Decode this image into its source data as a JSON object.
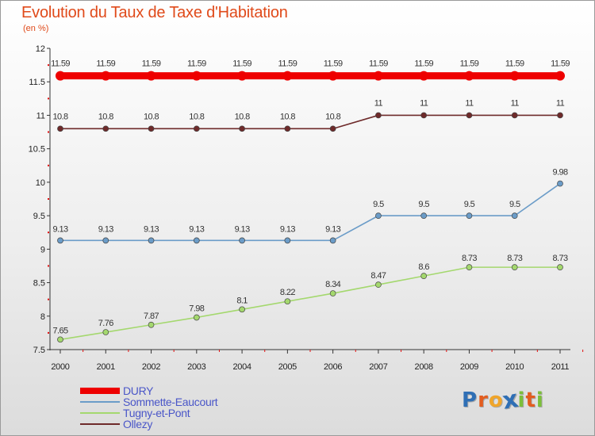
{
  "chart_data": {
    "type": "line",
    "title": "Evolution du Taux de Taxe d'Habitation",
    "subtitle": "(en %)",
    "x": [
      "2000",
      "2001",
      "2002",
      "2003",
      "2004",
      "2005",
      "2006",
      "2007",
      "2008",
      "2009",
      "2010",
      "2011"
    ],
    "ylim": [
      7.5,
      12
    ],
    "yticks": [
      "7.5",
      "8",
      "8.5",
      "9",
      "9.5",
      "10",
      "10.5",
      "11",
      "11.5",
      "12"
    ],
    "grid": false,
    "legend_position": "bottom-left",
    "series": [
      {
        "name": "DURY",
        "color": "#ee0000",
        "values": [
          11.59,
          11.59,
          11.59,
          11.59,
          11.59,
          11.59,
          11.59,
          11.59,
          11.59,
          11.59,
          11.59,
          11.59
        ],
        "labels": [
          "11.59",
          "11.59",
          "11.59",
          "11.59",
          "11.59",
          "11.59",
          "11.59",
          "11.59",
          "11.59",
          "11.59",
          "11.59",
          "11.59"
        ]
      },
      {
        "name": "Sommette-Eaucourt",
        "color": "#6b9cc8",
        "values": [
          9.13,
          9.13,
          9.13,
          9.13,
          9.13,
          9.13,
          9.13,
          9.5,
          9.5,
          9.5,
          9.5,
          9.98
        ],
        "labels": [
          "9.13",
          "9.13",
          "9.13",
          "9.13",
          "9.13",
          "9.13",
          "9.13",
          "9.5",
          "9.5",
          "9.5",
          "9.5",
          "9.98"
        ]
      },
      {
        "name": "Tugny-et-Pont",
        "color": "#a4d86e",
        "values": [
          7.65,
          7.76,
          7.87,
          7.98,
          8.1,
          8.22,
          8.34,
          8.47,
          8.6,
          8.73,
          8.73,
          8.73
        ],
        "labels": [
          "7.65",
          "7.76",
          "7.87",
          "7.98",
          "8.1",
          "8.22",
          "8.34",
          "8.47",
          "8.6",
          "8.73",
          "8.73",
          "8.73"
        ]
      },
      {
        "name": "Ollezy",
        "color": "#6e2a2a",
        "values": [
          10.8,
          10.8,
          10.8,
          10.8,
          10.8,
          10.8,
          10.8,
          11,
          11,
          11,
          11,
          11
        ],
        "labels": [
          "10.8",
          "10.8",
          "10.8",
          "10.8",
          "10.8",
          "10.8",
          "10.8",
          "11",
          "11",
          "11",
          "11",
          "11"
        ]
      }
    ]
  },
  "logo": {
    "letters": [
      {
        "ch": "P",
        "color": "#2f6fb5"
      },
      {
        "ch": "r",
        "color": "#e35d1f"
      },
      {
        "ch": "o",
        "color": "#f0a52a"
      },
      {
        "ch": "x",
        "color": "#2f6fb5"
      },
      {
        "ch": "i",
        "color": "#7cbf3a"
      },
      {
        "ch": "t",
        "color": "#e35d1f"
      },
      {
        "ch": "i",
        "color": "#7cbf3a"
      }
    ]
  }
}
